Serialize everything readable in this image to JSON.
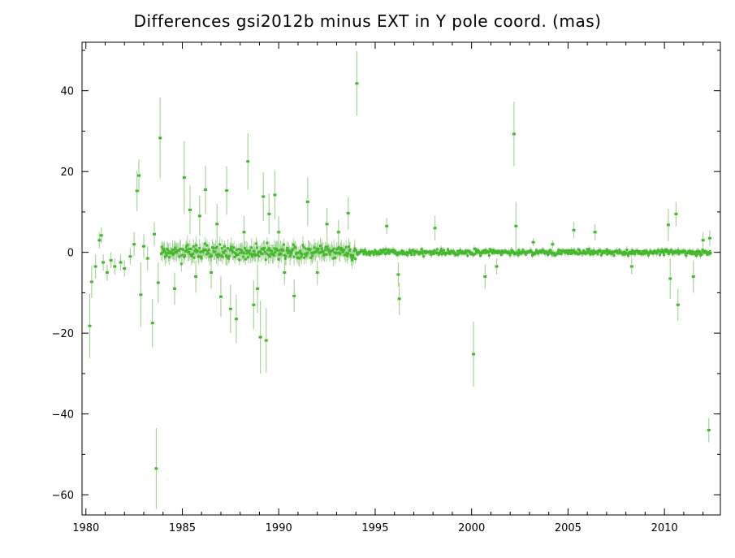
{
  "chart_data": {
    "type": "scatter",
    "title": "Differences gsi2012b minus EXT in Y pole coord. (mas)",
    "xlabel": "",
    "ylabel": "",
    "xlim": [
      1979.8,
      2012.9
    ],
    "ylim": [
      -65,
      52
    ],
    "xticks": [
      1980,
      1985,
      1990,
      1995,
      2000,
      2005,
      2010
    ],
    "yticks": [
      -60,
      -40,
      -20,
      0,
      20,
      40
    ],
    "xtick_labels": [
      "1980",
      "1985",
      "1990",
      "1995",
      "2000",
      "2005",
      "2010"
    ],
    "ytick_labels": [
      "−60",
      "−40",
      "−20",
      "0",
      "20",
      "40"
    ],
    "grid": false,
    "colors": {
      "points": "#44b82c",
      "error_bars": "#a9d59c",
      "axes": "#000000"
    },
    "series": [
      {
        "points": [
          {
            "x": 1980.2,
            "y": -18.2,
            "err": 8
          },
          {
            "x": 1980.3,
            "y": -7.3,
            "err": 4
          },
          {
            "x": 1980.5,
            "y": -3.5,
            "err": 3
          },
          {
            "x": 1980.7,
            "y": 3.0,
            "err": 2
          },
          {
            "x": 1980.8,
            "y": 4.2,
            "err": 2
          },
          {
            "x": 1980.9,
            "y": -2.5,
            "err": 2
          },
          {
            "x": 1981.1,
            "y": -5.0,
            "err": 2
          },
          {
            "x": 1981.3,
            "y": -2.0,
            "err": 2
          },
          {
            "x": 1981.5,
            "y": -3.5,
            "err": 2
          },
          {
            "x": 1981.8,
            "y": -2.5,
            "err": 2
          },
          {
            "x": 1982.0,
            "y": -4.0,
            "err": 2
          },
          {
            "x": 1982.3,
            "y": -1.0,
            "err": 2
          },
          {
            "x": 1982.5,
            "y": 2.0,
            "err": 3
          },
          {
            "x": 1982.65,
            "y": 15.2,
            "err": 5
          },
          {
            "x": 1982.75,
            "y": 19.0,
            "err": 4
          },
          {
            "x": 1982.85,
            "y": -10.5,
            "err": 8
          },
          {
            "x": 1983.0,
            "y": 1.5,
            "err": 3
          },
          {
            "x": 1983.2,
            "y": -1.5,
            "err": 3
          },
          {
            "x": 1983.45,
            "y": -17.5,
            "err": 6
          },
          {
            "x": 1983.55,
            "y": 4.5,
            "err": 3
          },
          {
            "x": 1983.65,
            "y": -53.5,
            "err": 10
          },
          {
            "x": 1983.75,
            "y": -7.5,
            "err": 5
          },
          {
            "x": 1983.85,
            "y": 28.3,
            "err": 10
          },
          {
            "x": 1984.6,
            "y": -9.0,
            "err": 4
          },
          {
            "x": 1985.1,
            "y": 18.5,
            "err": 9
          },
          {
            "x": 1985.4,
            "y": 10.5,
            "err": 6
          },
          {
            "x": 1985.7,
            "y": -6.0,
            "err": 4
          },
          {
            "x": 1985.9,
            "y": 9.0,
            "err": 5
          },
          {
            "x": 1986.2,
            "y": 15.5,
            "err": 6
          },
          {
            "x": 1986.5,
            "y": -5.0,
            "err": 4
          },
          {
            "x": 1986.8,
            "y": 7.0,
            "err": 5
          },
          {
            "x": 1987.0,
            "y": -11.0,
            "err": 5
          },
          {
            "x": 1987.3,
            "y": 15.3,
            "err": 6
          },
          {
            "x": 1987.5,
            "y": -14.0,
            "err": 6
          },
          {
            "x": 1987.8,
            "y": -16.5,
            "err": 6
          },
          {
            "x": 1988.2,
            "y": 5.0,
            "err": 4
          },
          {
            "x": 1988.4,
            "y": 22.5,
            "err": 7
          },
          {
            "x": 1988.7,
            "y": -13.0,
            "err": 6
          },
          {
            "x": 1988.9,
            "y": -9.0,
            "err": 6
          },
          {
            "x": 1989.05,
            "y": -21.0,
            "err": 9
          },
          {
            "x": 1989.2,
            "y": 13.8,
            "err": 6
          },
          {
            "x": 1989.35,
            "y": -21.8,
            "err": 8
          },
          {
            "x": 1989.5,
            "y": 9.5,
            "err": 5
          },
          {
            "x": 1989.8,
            "y": 14.2,
            "err": 6
          },
          {
            "x": 1990.0,
            "y": 5.0,
            "err": 4
          },
          {
            "x": 1990.3,
            "y": -5.0,
            "err": 3
          },
          {
            "x": 1990.8,
            "y": -10.8,
            "err": 4
          },
          {
            "x": 1991.5,
            "y": 12.5,
            "err": 6
          },
          {
            "x": 1992.0,
            "y": -5.0,
            "err": 3
          },
          {
            "x": 1992.5,
            "y": 7.0,
            "err": 4
          },
          {
            "x": 1993.1,
            "y": 5.0,
            "err": 3
          },
          {
            "x": 1993.6,
            "y": 9.7,
            "err": 4
          },
          {
            "x": 1994.05,
            "y": 41.8,
            "err": 8
          },
          {
            "x": 1995.6,
            "y": 6.5,
            "err": 2
          },
          {
            "x": 1996.2,
            "y": -5.5,
            "err": 3
          },
          {
            "x": 1996.25,
            "y": -11.5,
            "err": 4
          },
          {
            "x": 1998.1,
            "y": 6.0,
            "err": 3
          },
          {
            "x": 2000.1,
            "y": -25.2,
            "err": 8
          },
          {
            "x": 2000.7,
            "y": -6.0,
            "err": 3
          },
          {
            "x": 2001.3,
            "y": -3.5,
            "err": 2
          },
          {
            "x": 2002.2,
            "y": 29.3,
            "err": 8
          },
          {
            "x": 2002.3,
            "y": 6.5,
            "err": 6
          },
          {
            "x": 2003.2,
            "y": 2.5,
            "err": 1
          },
          {
            "x": 2004.2,
            "y": 2.0,
            "err": 1
          },
          {
            "x": 2005.3,
            "y": 5.5,
            "err": 2
          },
          {
            "x": 2006.4,
            "y": 5.0,
            "err": 2
          },
          {
            "x": 2008.3,
            "y": -3.5,
            "err": 2
          },
          {
            "x": 2010.2,
            "y": 6.8,
            "err": 4
          },
          {
            "x": 2010.3,
            "y": -6.5,
            "err": 5
          },
          {
            "x": 2010.6,
            "y": 9.5,
            "err": 3
          },
          {
            "x": 2010.7,
            "y": -13.0,
            "err": 4
          },
          {
            "x": 2011.5,
            "y": -6.0,
            "err": 4
          },
          {
            "x": 2012.0,
            "y": 3.0,
            "err": 2
          },
          {
            "x": 2012.3,
            "y": -44.0,
            "err": 3
          },
          {
            "x": 2012.35,
            "y": 3.5,
            "err": 2
          }
        ]
      }
    ]
  }
}
